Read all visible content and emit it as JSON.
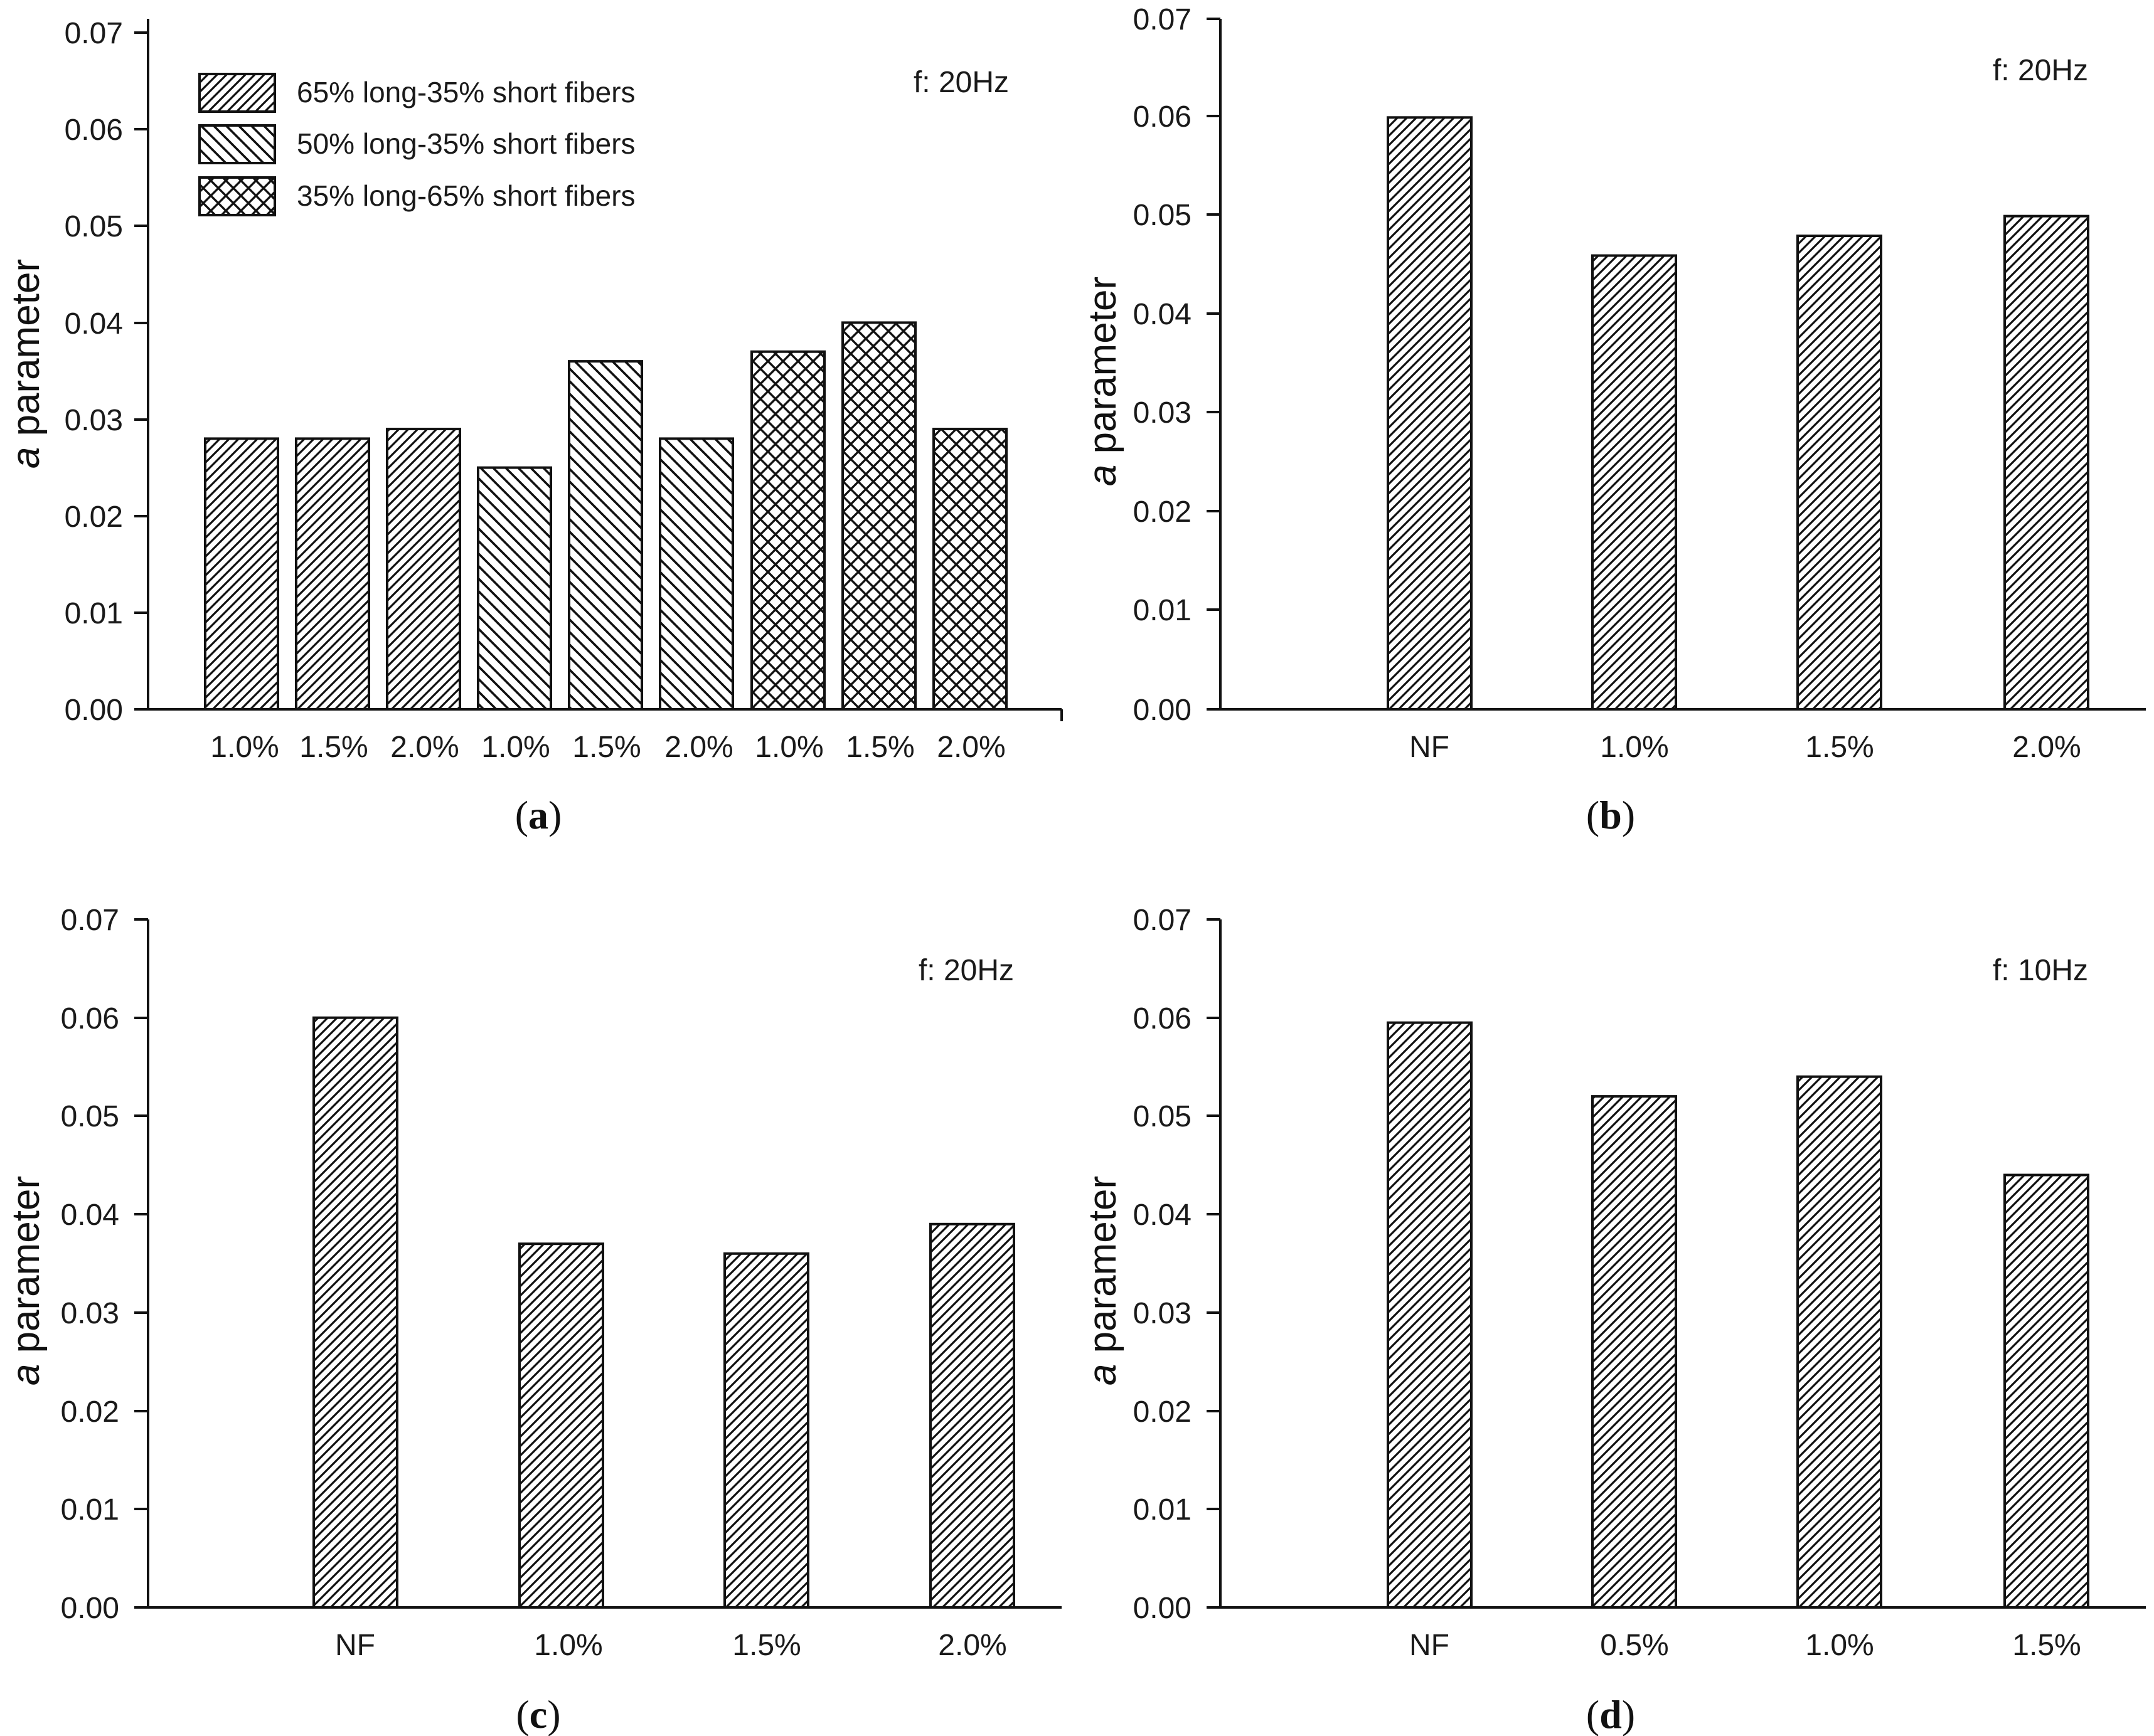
{
  "chart_data": [
    {
      "type": "bar",
      "panel": "a",
      "caption_letter": "a",
      "annotation": "f: 20Hz",
      "ylabel_italic": "a",
      "ylabel_rest": " parameter",
      "ylim": [
        0,
        0.07
      ],
      "yticks": [
        "0.00",
        "0.01",
        "0.02",
        "0.03",
        "0.04",
        "0.05",
        "0.06",
        "0.07"
      ],
      "categories": [
        "1.0%",
        "1.5%",
        "2.0%",
        "1.0%",
        "1.5%",
        "2.0%",
        "1.0%",
        "1.5%",
        "2.0%"
      ],
      "values": [
        0.028,
        0.028,
        0.029,
        0.025,
        0.036,
        0.028,
        0.037,
        0.04,
        0.029
      ],
      "bar_series": [
        0,
        0,
        0,
        1,
        1,
        1,
        2,
        2,
        2
      ],
      "legend": [
        {
          "label": "65% long-35% short fibers",
          "pattern": "hatch-right"
        },
        {
          "label": "50% long-35% short fibers",
          "pattern": "hatch-left"
        },
        {
          "label": "35% long-65% short fibers",
          "pattern": "crosshatch"
        }
      ]
    },
    {
      "type": "bar",
      "panel": "b",
      "caption_letter": "b",
      "annotation": "f: 20Hz",
      "ylabel_italic": "a",
      "ylabel_rest": " parameter",
      "ylim": [
        0,
        0.07
      ],
      "yticks": [
        "0.00",
        "0.01",
        "0.02",
        "0.03",
        "0.04",
        "0.05",
        "0.06",
        "0.07"
      ],
      "categories": [
        "NF",
        "1.0%",
        "1.5%",
        "2.0%"
      ],
      "values": [
        0.06,
        0.046,
        0.048,
        0.05
      ]
    },
    {
      "type": "bar",
      "panel": "c",
      "caption_letter": "c",
      "annotation": "f: 20Hz",
      "ylabel_italic": "a",
      "ylabel_rest": " parameter",
      "ylim": [
        0,
        0.07
      ],
      "yticks": [
        "0.00",
        "0.01",
        "0.02",
        "0.03",
        "0.04",
        "0.05",
        "0.06",
        "0.07"
      ],
      "categories": [
        "NF",
        "1.0%",
        "1.5%",
        "2.0%"
      ],
      "values": [
        0.06,
        0.037,
        0.036,
        0.039
      ]
    },
    {
      "type": "bar",
      "panel": "d",
      "caption_letter": "d",
      "annotation": "f: 10Hz",
      "ylabel_italic": "a",
      "ylabel_rest": " parameter",
      "ylim": [
        0,
        0.07
      ],
      "yticks": [
        "0.00",
        "0.01",
        "0.02",
        "0.03",
        "0.04",
        "0.05",
        "0.06",
        "0.07"
      ],
      "categories": [
        "NF",
        "0.5%",
        "1.0%",
        "1.5%"
      ],
      "values": [
        0.0595,
        0.052,
        0.054,
        0.044
      ]
    }
  ]
}
